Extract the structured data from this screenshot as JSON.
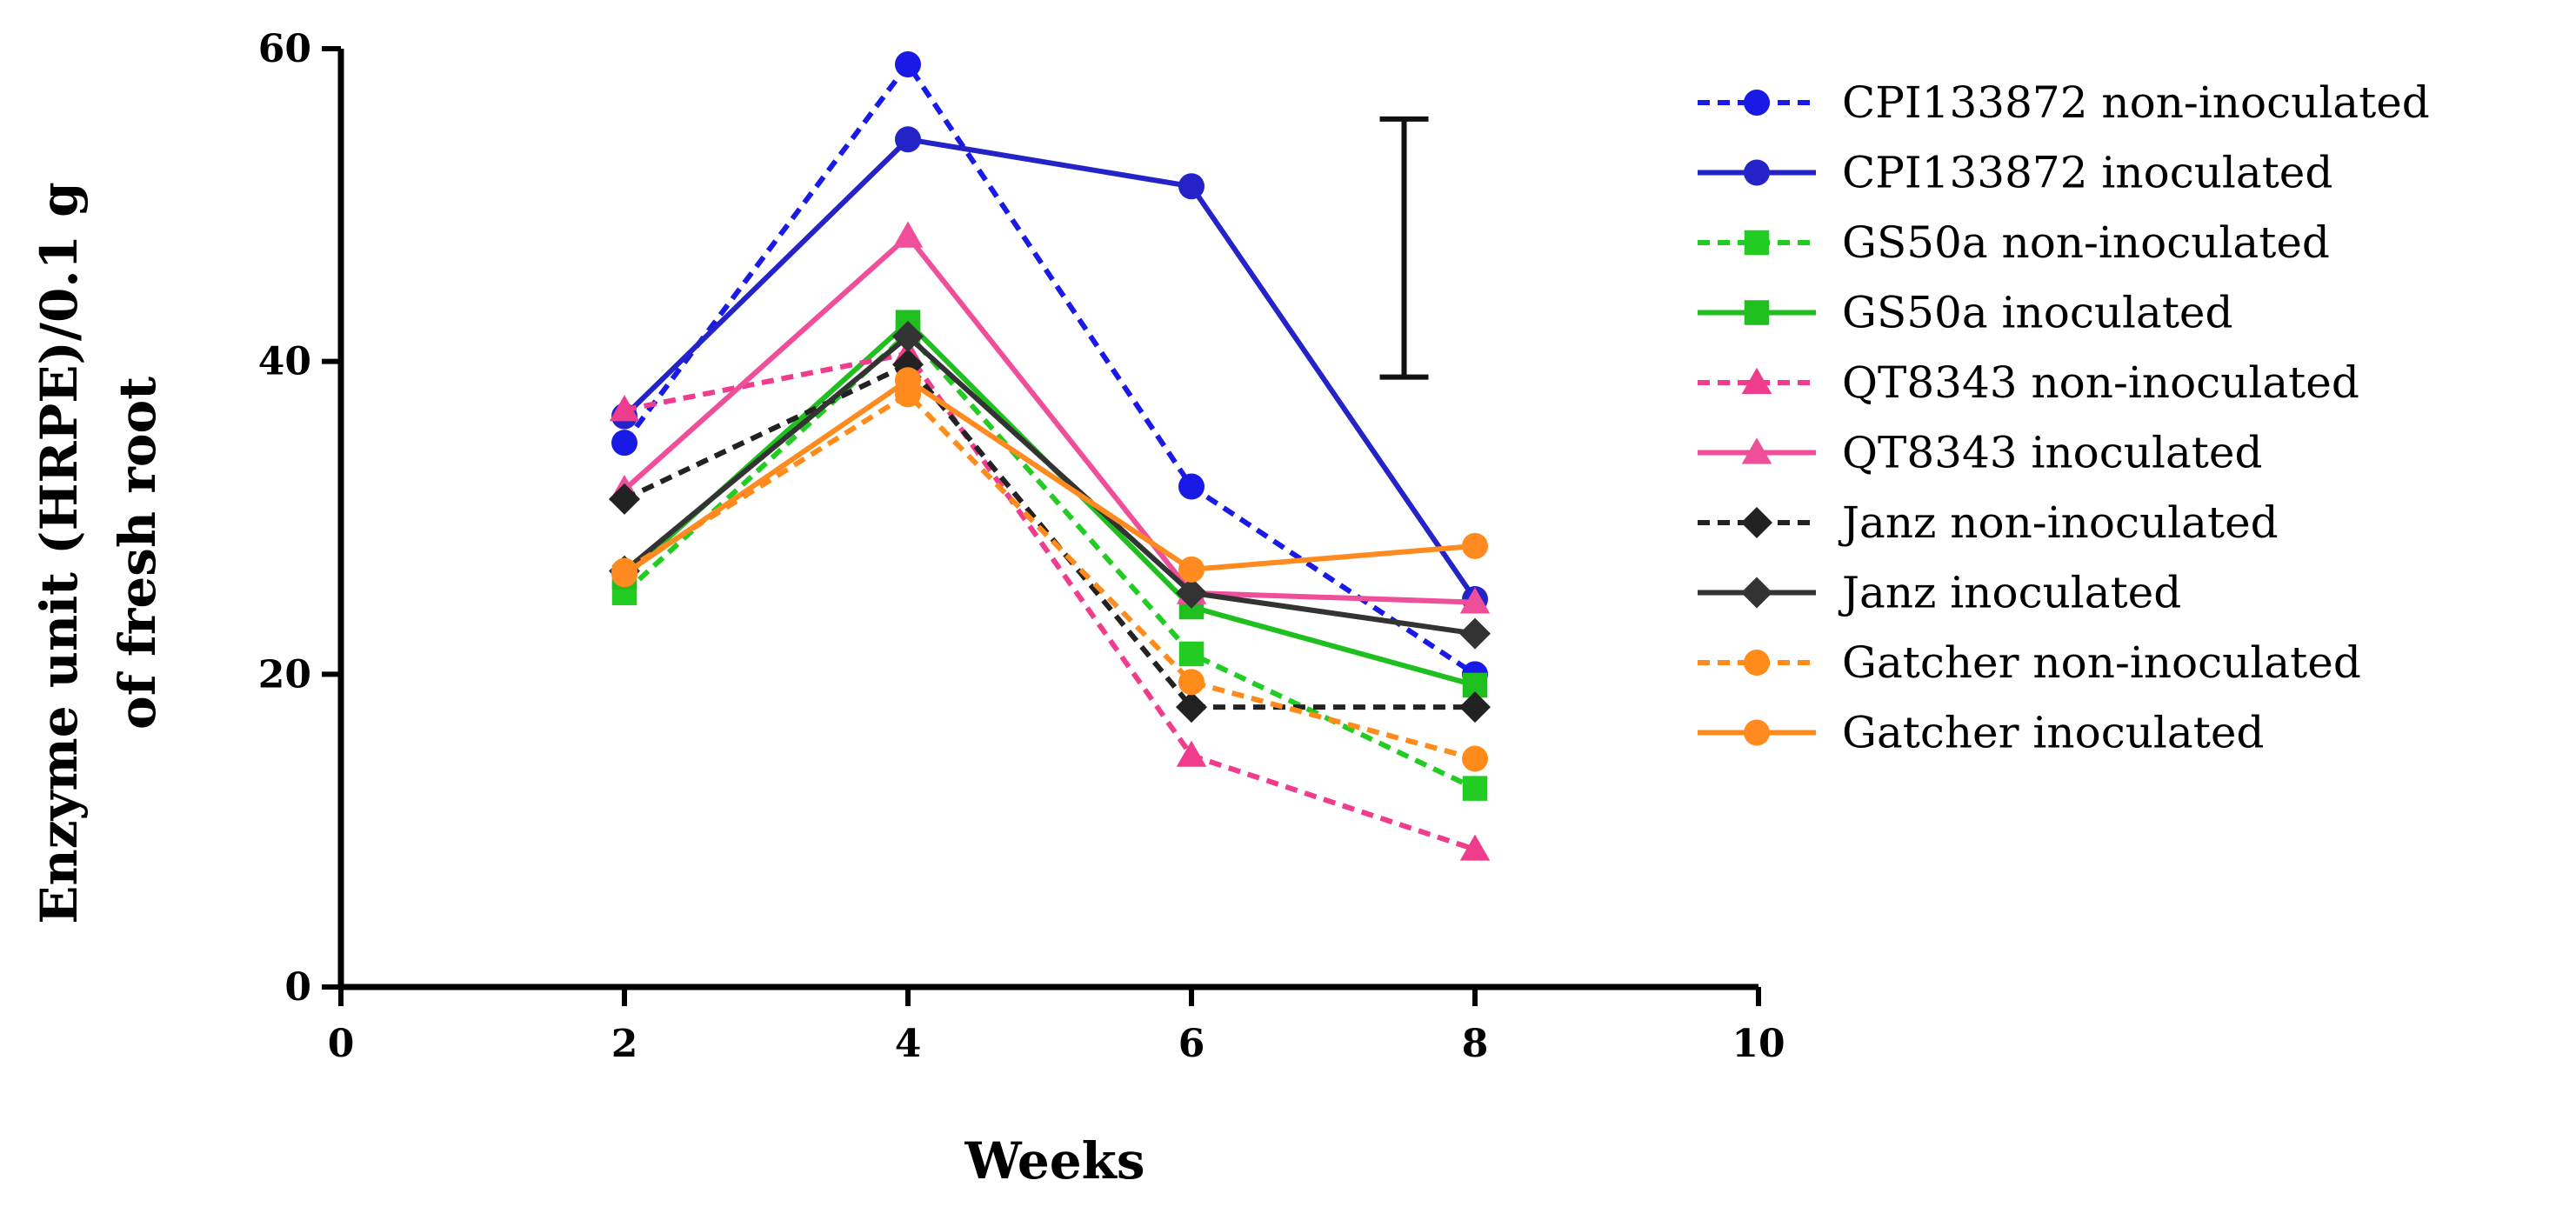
{
  "chart_data": {
    "type": "line",
    "title": "",
    "xlabel": "Weeks",
    "ylabel_line1": "Enzyme unit (HRPE)/0.1 g",
    "ylabel_line2": "of fresh root",
    "xlim": [
      0,
      10
    ],
    "ylim": [
      0,
      60
    ],
    "xticks": [
      "0",
      "2",
      "4",
      "6",
      "8",
      "10"
    ],
    "yticks": [
      "0",
      "20",
      "40",
      "60"
    ],
    "x": [
      2,
      4,
      6,
      8
    ],
    "legend_position": "right",
    "error_bar": {
      "x": 7.5,
      "low": 39,
      "high": 55.5
    },
    "series": [
      {
        "name": "CPI133872 non-inoculated",
        "color": "#1a1ae6",
        "dashed": true,
        "marker": "circle",
        "values": [
          34.8,
          59,
          32,
          20
        ]
      },
      {
        "name": "CPI133872 inoculated",
        "color": "#2323c8",
        "dashed": false,
        "marker": "circle",
        "values": [
          36.5,
          54.2,
          51.2,
          24.8
        ]
      },
      {
        "name": "GS50a non-inoculated",
        "color": "#22cc22",
        "dashed": true,
        "marker": "square",
        "values": [
          25.2,
          41.8,
          21.3,
          12.7
        ]
      },
      {
        "name": "GS50a  inoculated",
        "color": "#1fbf1f",
        "dashed": false,
        "marker": "square",
        "values": [
          26.2,
          42.5,
          24.3,
          19.3
        ]
      },
      {
        "name": "QT8343 non-inoculated",
        "color": "#f03c8c",
        "dashed": true,
        "marker": "triangle",
        "values": [
          36.9,
          40.5,
          14.8,
          8.8
        ]
      },
      {
        "name": "QT8343  inoculated",
        "color": "#ee4e9a",
        "dashed": false,
        "marker": "triangle",
        "values": [
          31.8,
          48,
          25.2,
          24.6
        ]
      },
      {
        "name": "Janz non-inoculated",
        "color": "#222222",
        "dashed": true,
        "marker": "diamond",
        "values": [
          31.2,
          39.8,
          17.9,
          17.9
        ]
      },
      {
        "name": "Janz  inoculated",
        "color": "#333333",
        "dashed": false,
        "marker": "diamond",
        "values": [
          26.6,
          41.6,
          25.2,
          22.6
        ]
      },
      {
        "name": "Gatcher non-inoculated",
        "color": "#ff8c1a",
        "dashed": true,
        "marker": "circle",
        "values": [
          26.6,
          37.9,
          19.5,
          14.6
        ]
      },
      {
        "name": "Gatcher  inoculated",
        "color": "#ff8a1f",
        "dashed": false,
        "marker": "circle",
        "values": [
          26.4,
          38.8,
          26.7,
          28.2
        ]
      }
    ]
  }
}
